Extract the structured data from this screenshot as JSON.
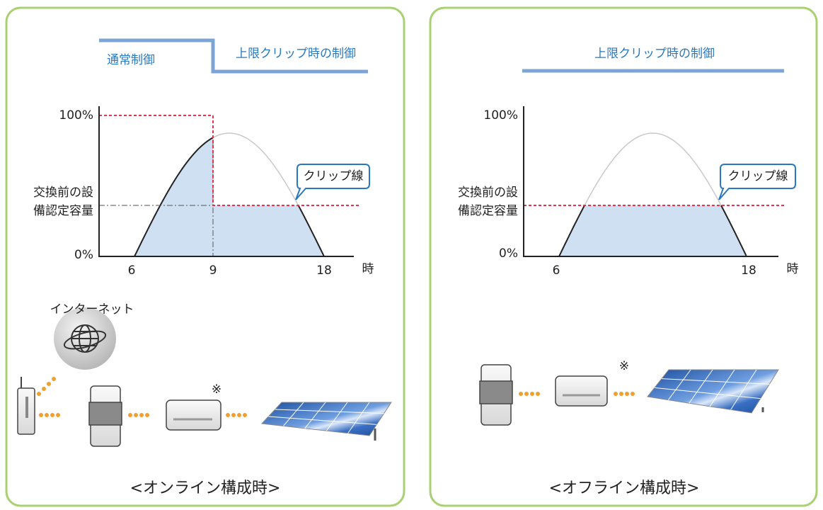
{
  "panels": [
    {
      "header": {
        "left": "通常制御",
        "right": "上限クリップ時の制御"
      },
      "chart": {
        "y_top": "100%",
        "y_mid": [
          "交換前の設",
          "備認定容量"
        ],
        "y_bottom": "0%",
        "x_ticks": [
          "6",
          "9",
          "18"
        ],
        "x_unit": "時",
        "callout": "クリップ線"
      },
      "devices": {
        "internet": "インターネット",
        "note": "※"
      },
      "caption": "<オンライン構成時>"
    },
    {
      "header": {
        "title": "上限クリップ時の制御"
      },
      "chart": {
        "y_top": "100%",
        "y_mid": [
          "交換前の設",
          "備認定容量"
        ],
        "y_bottom": "0%",
        "x_ticks": [
          "6",
          "18"
        ],
        "x_unit": "時",
        "callout": "クリップ線"
      },
      "devices": {
        "note": "※"
      },
      "caption": "<オフライン構成時>"
    }
  ]
}
